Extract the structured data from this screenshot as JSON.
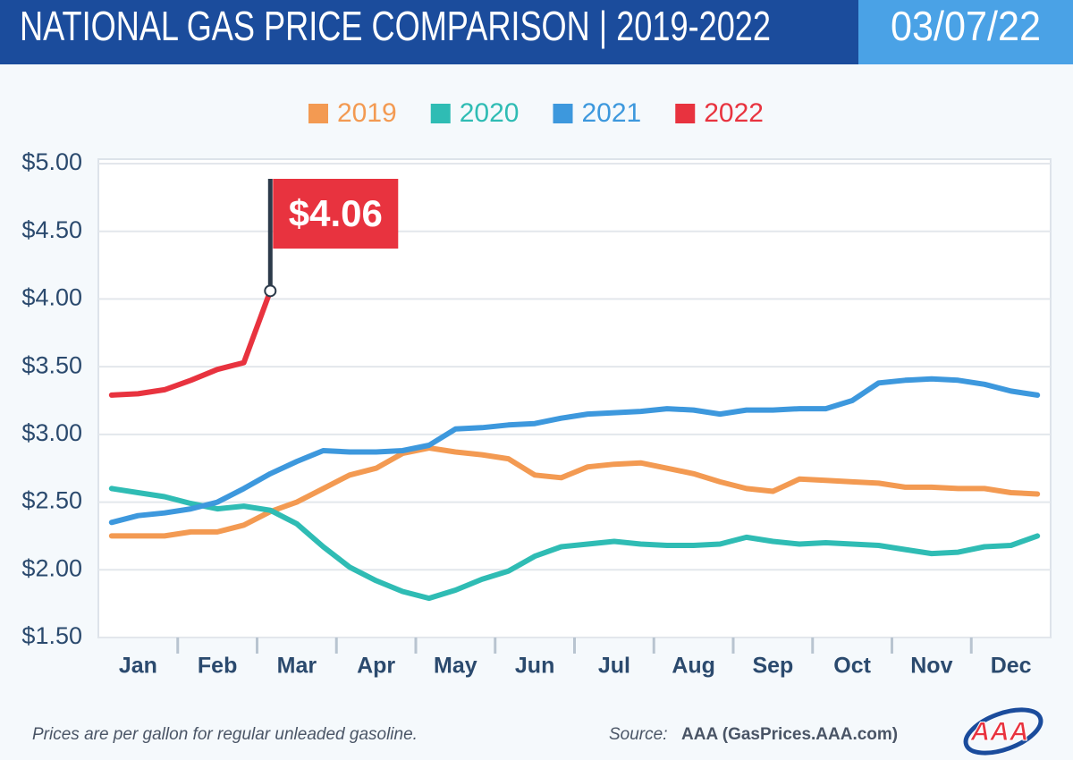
{
  "chart_data": {
    "type": "line",
    "title": "NATIONAL GAS PRICE COMPARISON | 2019-2022",
    "date": "03/07/22",
    "categories": [
      null,
      "Jan",
      null,
      null,
      "Feb",
      null,
      null,
      "Mar",
      null,
      null,
      "Apr",
      null,
      null,
      "May",
      null,
      null,
      "Jun",
      null,
      null,
      "Jul",
      null,
      null,
      "Aug",
      null,
      null,
      "Sep",
      null,
      null,
      "Oct",
      null,
      null,
      "Nov",
      null,
      null,
      "Dec",
      null
    ],
    "series": [
      {
        "name": "2019",
        "color": "#f39a52",
        "values": [
          2.25,
          2.25,
          2.25,
          2.28,
          2.28,
          2.33,
          2.43,
          2.5,
          2.6,
          2.7,
          2.75,
          2.86,
          2.9,
          2.87,
          2.85,
          2.82,
          2.7,
          2.68,
          2.76,
          2.78,
          2.79,
          2.75,
          2.71,
          2.65,
          2.6,
          2.58,
          2.67,
          2.66,
          2.65,
          2.64,
          2.61,
          2.61,
          2.6,
          2.6,
          2.57,
          2.56
        ]
      },
      {
        "name": "2020",
        "color": "#2fbcb4",
        "values": [
          2.6,
          2.57,
          2.54,
          2.49,
          2.45,
          2.47,
          2.44,
          2.34,
          2.17,
          2.02,
          1.92,
          1.84,
          1.79,
          1.85,
          1.93,
          1.99,
          2.1,
          2.17,
          2.19,
          2.21,
          2.19,
          2.18,
          2.18,
          2.19,
          2.24,
          2.21,
          2.19,
          2.2,
          2.19,
          2.18,
          2.15,
          2.12,
          2.13,
          2.17,
          2.18,
          2.25
        ]
      },
      {
        "name": "2021",
        "color": "#3d98dd",
        "values": [
          2.35,
          2.4,
          2.42,
          2.45,
          2.5,
          2.6,
          2.71,
          2.8,
          2.88,
          2.87,
          2.87,
          2.88,
          2.92,
          3.04,
          3.05,
          3.07,
          3.08,
          3.12,
          3.15,
          3.16,
          3.17,
          3.19,
          3.18,
          3.15,
          3.18,
          3.18,
          3.19,
          3.19,
          3.25,
          3.38,
          3.4,
          3.41,
          3.4,
          3.37,
          3.32,
          3.29
        ]
      },
      {
        "name": "2022",
        "color": "#e8333f",
        "values": [
          3.29,
          3.3,
          3.33,
          3.4,
          3.48,
          3.53,
          4.06,
          null,
          null,
          null,
          null,
          null,
          null,
          null,
          null,
          null,
          null,
          null,
          null,
          null,
          null,
          null,
          null,
          null,
          null,
          null,
          null,
          null,
          null,
          null,
          null,
          null,
          null,
          null,
          null,
          null
        ],
        "value_labels": [
          null,
          null,
          null,
          null,
          null,
          null,
          "$4.06",
          null,
          null,
          null,
          null,
          null,
          null,
          null,
          null,
          null,
          null,
          null,
          null,
          null,
          null,
          null,
          null,
          null,
          null,
          null,
          null,
          null,
          null,
          null,
          null,
          null,
          null,
          null,
          null,
          null
        ]
      }
    ],
    "ylim": [
      1.5,
      5
    ],
    "yticks": [
      {
        "value": 1.5,
        "label": "$1.50"
      },
      {
        "value": 2,
        "label": "$2.00"
      },
      {
        "value": 2.5,
        "label": "$2.50"
      },
      {
        "value": 3,
        "label": "$3.00"
      },
      {
        "value": 3.5,
        "label": "$3.50"
      },
      {
        "value": 4,
        "label": "$4.00"
      },
      {
        "value": 4.5,
        "label": "$4.50"
      },
      {
        "value": 5,
        "label": "$5.00"
      }
    ],
    "grid": true,
    "legend": "top",
    "footnote": "Prices are per gallon for regular unleaded gasoline.",
    "source_label": "Source:",
    "source": "AAA (GasPrices.AAA.com)",
    "logo": "AAA"
  }
}
